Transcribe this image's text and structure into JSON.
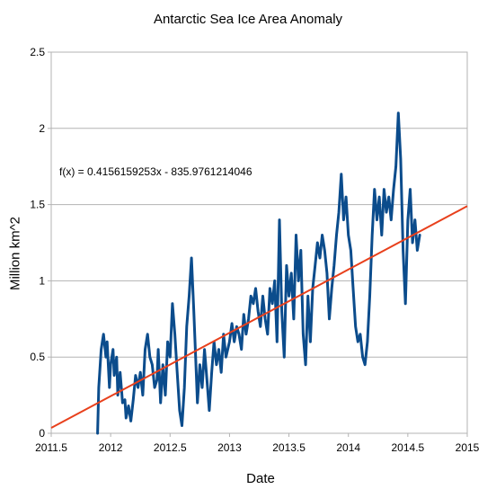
{
  "chart_data": {
    "type": "line",
    "title": "Antarctic Sea Ice Area Anomaly",
    "xlabel": "Date",
    "ylabel": "Million km^2",
    "xlim": [
      2011.5,
      2015
    ],
    "ylim": [
      0,
      2.5
    ],
    "x_ticks": [
      2011.5,
      2012,
      2012.5,
      2013,
      2013.5,
      2014,
      2014.5,
      2015
    ],
    "x_tick_labels": [
      "2011.5",
      "2012",
      "2012.5",
      "2013",
      "2013.5",
      "2014",
      "2014.5",
      "2015"
    ],
    "y_ticks": [
      0,
      0.5,
      1,
      1.5,
      2,
      2.5
    ],
    "y_tick_labels": [
      "0",
      "0.5",
      "1",
      "1.5",
      "2",
      "2.5"
    ],
    "grid": "horizontal",
    "annotation": "f(x) = 0.4156159253x - 835.9761214046",
    "trendline": {
      "slope": 0.4156159253,
      "intercept": -835.9761214046,
      "color": "#e8401c"
    },
    "series": [
      {
        "color": "#0b4c8c",
        "x": [
          2011.89,
          2011.9,
          2011.92,
          2011.94,
          2011.96,
          2011.97,
          2011.99,
          2012.0,
          2012.02,
          2012.03,
          2012.05,
          2012.06,
          2012.08,
          2012.1,
          2012.12,
          2012.13,
          2012.15,
          2012.17,
          2012.19,
          2012.21,
          2012.23,
          2012.25,
          2012.27,
          2012.29,
          2012.31,
          2012.33,
          2012.35,
          2012.37,
          2012.39,
          2012.4,
          2012.42,
          2012.44,
          2012.46,
          2012.48,
          2012.5,
          2012.52,
          2012.54,
          2012.56,
          2012.58,
          2012.6,
          2012.62,
          2012.64,
          2012.66,
          2012.68,
          2012.7,
          2012.72,
          2012.73,
          2012.75,
          2012.77,
          2012.79,
          2012.81,
          2012.83,
          2012.85,
          2012.87,
          2012.89,
          2012.91,
          2012.93,
          2012.95,
          2012.97,
          2013.0,
          2013.02,
          2013.04,
          2013.06,
          2013.08,
          2013.1,
          2013.12,
          2013.14,
          2013.16,
          2013.18,
          2013.2,
          2013.22,
          2013.24,
          2013.26,
          2013.28,
          2013.3,
          2013.32,
          2013.34,
          2013.36,
          2013.38,
          2013.4,
          2013.42,
          2013.44,
          2013.46,
          2013.48,
          2013.5,
          2013.52,
          2013.54,
          2013.56,
          2013.58,
          2013.6,
          2013.62,
          2013.64,
          2013.66,
          2013.68,
          2013.7,
          2013.72,
          2013.74,
          2013.76,
          2013.78,
          2013.8,
          2013.82,
          2013.84,
          2013.86,
          2013.88,
          2013.9,
          2013.92,
          2013.94,
          2013.96,
          2013.98,
          2014.0,
          2014.02,
          2014.04,
          2014.06,
          2014.08,
          2014.1,
          2014.12,
          2014.14,
          2014.16,
          2014.18,
          2014.2,
          2014.22,
          2014.24,
          2014.26,
          2014.28,
          2014.3,
          2014.32,
          2014.34,
          2014.36,
          2014.38,
          2014.4,
          2014.42,
          2014.44,
          2014.46,
          2014.48,
          2014.5,
          2014.52,
          2014.54,
          2014.56,
          2014.58,
          2014.6
        ],
        "y": [
          0.0,
          0.3,
          0.55,
          0.65,
          0.5,
          0.6,
          0.3,
          0.45,
          0.55,
          0.38,
          0.5,
          0.25,
          0.4,
          0.2,
          0.22,
          0.1,
          0.18,
          0.08,
          0.22,
          0.38,
          0.3,
          0.4,
          0.25,
          0.55,
          0.65,
          0.5,
          0.45,
          0.3,
          0.35,
          0.55,
          0.2,
          0.45,
          0.25,
          0.6,
          0.5,
          0.85,
          0.65,
          0.4,
          0.15,
          0.05,
          0.3,
          0.7,
          0.9,
          1.15,
          0.8,
          0.4,
          0.2,
          0.45,
          0.3,
          0.55,
          0.35,
          0.15,
          0.4,
          0.6,
          0.45,
          0.55,
          0.4,
          0.65,
          0.5,
          0.6,
          0.72,
          0.6,
          0.7,
          0.65,
          0.55,
          0.78,
          0.65,
          0.75,
          0.9,
          0.85,
          0.95,
          0.8,
          0.7,
          0.9,
          0.75,
          0.65,
          0.95,
          0.85,
          1.0,
          0.6,
          1.4,
          0.8,
          0.5,
          1.1,
          0.9,
          1.05,
          0.75,
          1.3,
          1.0,
          1.2,
          0.65,
          0.45,
          0.9,
          0.6,
          0.95,
          1.1,
          1.25,
          1.15,
          1.3,
          1.2,
          1.05,
          0.75,
          0.95,
          1.1,
          1.3,
          1.45,
          1.7,
          1.4,
          1.55,
          1.3,
          1.2,
          0.95,
          0.7,
          0.6,
          0.65,
          0.5,
          0.45,
          0.6,
          0.9,
          1.3,
          1.6,
          1.4,
          1.55,
          1.3,
          1.6,
          1.45,
          1.55,
          1.4,
          1.6,
          1.75,
          2.1,
          1.8,
          1.2,
          0.85,
          1.4,
          1.6,
          1.25,
          1.4,
          1.2,
          1.3
        ]
      }
    ]
  }
}
